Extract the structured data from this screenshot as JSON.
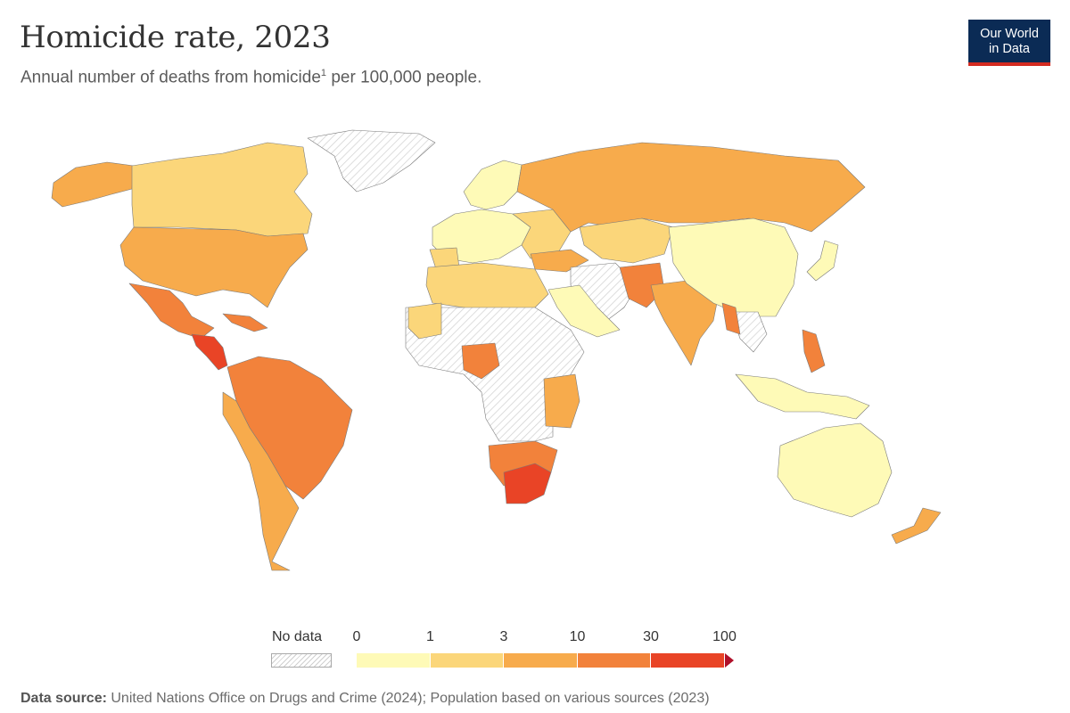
{
  "header": {
    "title": "Homicide rate, 2023",
    "subtitle": "Annual number of deaths from homicide",
    "subtitle_sup": "1",
    "subtitle_tail": " per 100,000 people.",
    "logo_line1": "Our World",
    "logo_line2": "in Data"
  },
  "legend": {
    "no_data_label": "No data",
    "bins": [
      {
        "label": "0",
        "color": "#fefab7"
      },
      {
        "label": "1",
        "color": "#fbd67a"
      },
      {
        "label": "3",
        "color": "#f7ab4c"
      },
      {
        "label": "10",
        "color": "#f2823b"
      },
      {
        "label": "30",
        "color": "#e94426"
      },
      {
        "label": "100",
        "color": "#b0102a"
      }
    ]
  },
  "source": {
    "label": "Data source:",
    "text": " United Nations Office on Drugs and Crime (2024); Population based on various sources (2023)"
  }
}
